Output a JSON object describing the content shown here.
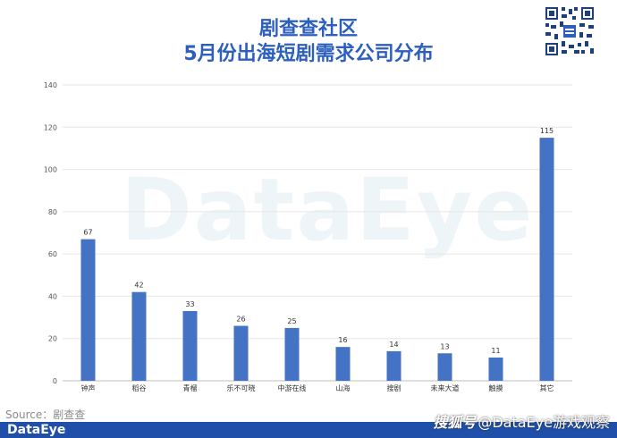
{
  "header": {
    "title_line1": "剧查查社区",
    "title_line2": "5月份出海短剧需求公司分布"
  },
  "watermark": "DataEye",
  "source": "Source：剧查查",
  "footer": {
    "brand": "DataEye",
    "platform": "搜狐号",
    "handle": "@DataEye游戏观察"
  },
  "colors": {
    "bar": "#4472c4",
    "title": "#2d5fbf",
    "footer": "#1f4fa8"
  },
  "chart_data": {
    "type": "bar",
    "categories": [
      "钟声",
      "稻谷",
      "青榴",
      "乐不可晓",
      "中游在线",
      "山海",
      "搜剧",
      "未来大道",
      "触摸",
      "其它"
    ],
    "values": [
      67,
      42,
      33,
      26,
      25,
      16,
      14,
      13,
      11,
      115
    ],
    "title": "",
    "xlabel": "",
    "ylabel": "",
    "ylim": [
      0,
      140
    ],
    "yticks": [
      0,
      20,
      40,
      60,
      80,
      100,
      120,
      140
    ],
    "grid": true,
    "legend": "none"
  }
}
